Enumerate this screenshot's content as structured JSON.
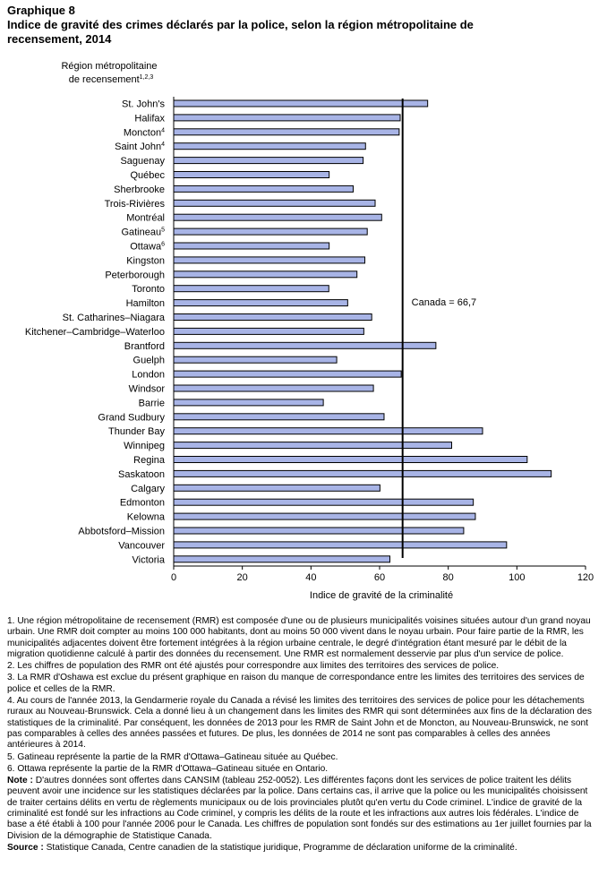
{
  "header": {
    "graphic_label": "Graphique 8",
    "title": "Indice de gravité des crimes déclarés par la police, selon la région métropolitaine de recensement, 2014"
  },
  "chart_data": {
    "type": "bar",
    "orientation": "horizontal",
    "ylabel_line1": "Région métropolitaine",
    "ylabel_line2": "de recensement",
    "ylabel_sup": "1,2,3",
    "xlabel": "Indice de gravité de la criminalité",
    "xlim": [
      0,
      120
    ],
    "xticks": [
      0,
      20,
      40,
      60,
      80,
      100,
      120
    ],
    "grid": false,
    "bar_color": "#a8b4e6",
    "bar_edge": "#000000",
    "categories": [
      {
        "name": "St. John's",
        "sup": ""
      },
      {
        "name": "Halifax",
        "sup": ""
      },
      {
        "name": "Moncton",
        "sup": "4"
      },
      {
        "name": "Saint John",
        "sup": "4"
      },
      {
        "name": "Saguenay",
        "sup": ""
      },
      {
        "name": "Québec",
        "sup": ""
      },
      {
        "name": "Sherbrooke",
        "sup": ""
      },
      {
        "name": "Trois-Rivières",
        "sup": ""
      },
      {
        "name": "Montréal",
        "sup": ""
      },
      {
        "name": "Gatineau",
        "sup": "5"
      },
      {
        "name": "Ottawa",
        "sup": "6"
      },
      {
        "name": "Kingston",
        "sup": ""
      },
      {
        "name": "Peterborough",
        "sup": ""
      },
      {
        "name": "Toronto",
        "sup": ""
      },
      {
        "name": "Hamilton",
        "sup": ""
      },
      {
        "name": "St. Catharines–Niagara",
        "sup": ""
      },
      {
        "name": "Kitchener–Cambridge–Waterloo",
        "sup": ""
      },
      {
        "name": "Brantford",
        "sup": ""
      },
      {
        "name": "Guelph",
        "sup": ""
      },
      {
        "name": "London",
        "sup": ""
      },
      {
        "name": "Windsor",
        "sup": ""
      },
      {
        "name": "Barrie",
        "sup": ""
      },
      {
        "name": "Grand Sudbury",
        "sup": ""
      },
      {
        "name": "Thunder Bay",
        "sup": ""
      },
      {
        "name": "Winnipeg",
        "sup": ""
      },
      {
        "name": "Regina",
        "sup": ""
      },
      {
        "name": "Saskatoon",
        "sup": ""
      },
      {
        "name": "Calgary",
        "sup": ""
      },
      {
        "name": "Edmonton",
        "sup": ""
      },
      {
        "name": "Kelowna",
        "sup": ""
      },
      {
        "name": "Abbotsford–Mission",
        "sup": ""
      },
      {
        "name": "Vancouver",
        "sup": ""
      },
      {
        "name": "Victoria",
        "sup": ""
      }
    ],
    "values": [
      74.0,
      66.0,
      65.7,
      55.9,
      55.2,
      45.3,
      52.3,
      58.7,
      60.6,
      56.4,
      45.3,
      55.7,
      53.4,
      45.2,
      50.7,
      57.7,
      55.4,
      76.4,
      47.5,
      66.3,
      58.2,
      43.6,
      61.3,
      90.0,
      81.0,
      103.0,
      110.0,
      60.1,
      87.3,
      87.9,
      84.5,
      97.0,
      63.0
    ],
    "reference": {
      "value": 66.7,
      "label": "Canada = 66,7"
    }
  },
  "notes": [
    {
      "label": "",
      "text": "1.  Une région métropolitaine de recensement (RMR) est composée d'une ou de plusieurs municipalités voisines situées autour d'un grand noyau urbain. Une RMR doit compter au moins 100 000 habitants, dont au moins 50 000 vivent dans le noyau urbain. Pour faire partie de la RMR, les municipalités adjacentes doivent être fortement intégrées à la région urbaine centrale, le degré d'intégration étant mesuré par le débit de la migration quotidienne calculé à partir des données du recensement. Une RMR est normalement desservie par plus d'un service de police."
    },
    {
      "label": "",
      "text": "2. Les chiffres de population des RMR ont été ajustés pour correspondre aux limites des territoires des services de police."
    },
    {
      "label": "",
      "text": "3. La RMR d'Oshawa est exclue du présent graphique en raison du manque de correspondance entre les limites des territoires des services de police et celles de la RMR."
    },
    {
      "label": "",
      "text": "4. Au cours de l'année 2013, la Gendarmerie royale du Canada a révisé les limites des territoires des services de police pour les détachements ruraux au Nouveau-Brunswick. Cela a donné lieu à un changement dans les limites des RMR qui sont déterminées aux fins de la déclaration des statistiques de la criminalité. Par conséquent, les données de 2013 pour les RMR de Saint John et de Moncton, au Nouveau-Brunswick, ne sont pas comparables à celles des années passées et futures. De plus, les données de 2014  ne sont pas comparables à celles des années antérieures à 2014."
    },
    {
      "label": "",
      "text": "5. Gatineau représente la partie de la RMR d'Ottawa–Gatineau située au Québec."
    },
    {
      "label": "",
      "text": "6. Ottawa représente la partie de la RMR d'Ottawa–Gatineau située en Ontario."
    },
    {
      "label": "Note :",
      "text": " D'autres  données sont offertes dans CANSIM (tableau 252-0052). Les différentes façons dont les services de police traitent les délits peuvent avoir une incidence sur les statistiques déclarées par la police. Dans certains cas, il arrive que la police ou les municipalités choisissent de traiter certains délits en vertu de règlements municipaux ou de lois provinciales plutôt qu'en vertu du Code criminel. L'indice de gravité de la criminalité est fondé sur les infractions au Code criminel, y compris les délits de la route et les infractions aux autres lois fédérales. L'indice de base a été établi à 100 pour l'année 2006 pour le Canada. Les chiffres de population sont fondés sur des estimations au 1er juillet fournies par la Division de la démographie de Statistique Canada."
    },
    {
      "label": "Source :",
      "text": " Statistique Canada, Centre canadien de la statistique juridique, Programme de déclaration uniforme de la criminalité."
    }
  ]
}
